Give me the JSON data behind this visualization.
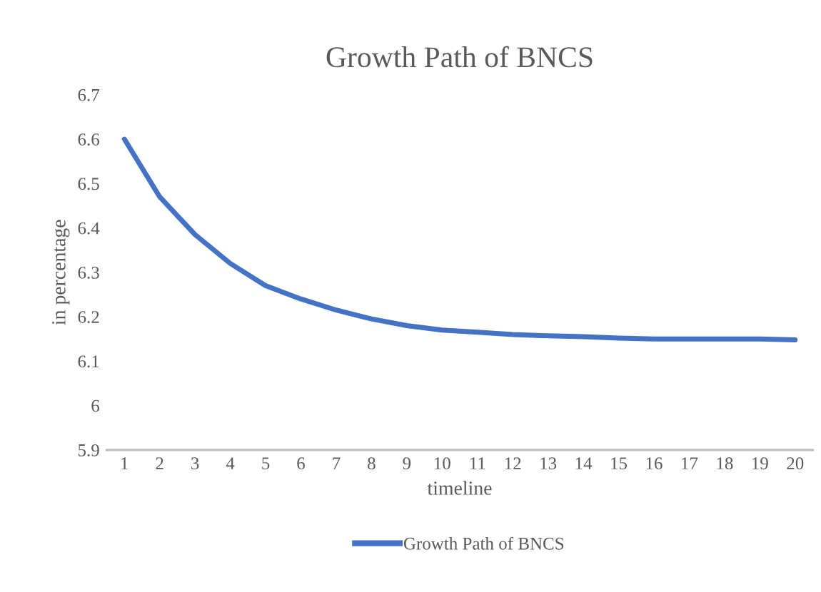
{
  "chart_data": {
    "type": "line",
    "title": "Growth Path of BNCS",
    "xlabel": "timeline",
    "ylabel": "in percentage",
    "categories": [
      "1",
      "2",
      "3",
      "4",
      "5",
      "6",
      "7",
      "8",
      "9",
      "10",
      "11",
      "12",
      "13",
      "14",
      "15",
      "16",
      "17",
      "18",
      "19",
      "20"
    ],
    "series": [
      {
        "name": "Growth Path of BNCS",
        "color": "#4472c4",
        "values": [
          6.6,
          6.47,
          6.385,
          6.32,
          6.27,
          6.24,
          6.215,
          6.195,
          6.18,
          6.17,
          6.165,
          6.16,
          6.157,
          6.155,
          6.152,
          6.15,
          6.15,
          6.15,
          6.15,
          6.148
        ]
      }
    ],
    "ylim": [
      5.9,
      6.7
    ],
    "yticks": [
      {
        "value": 5.9,
        "label": "5.9"
      },
      {
        "value": 6.0,
        "label": "6"
      },
      {
        "value": 6.1,
        "label": "6.1"
      },
      {
        "value": 6.2,
        "label": "6.2"
      },
      {
        "value": 6.3,
        "label": "6.3"
      },
      {
        "value": 6.4,
        "label": "6.4"
      },
      {
        "value": 6.5,
        "label": "6.5"
      },
      {
        "value": 6.6,
        "label": "6.6"
      },
      {
        "value": 6.7,
        "label": "6.7"
      }
    ],
    "grid": false,
    "legend": "bottom",
    "marker": "none",
    "line_style": "solid"
  }
}
